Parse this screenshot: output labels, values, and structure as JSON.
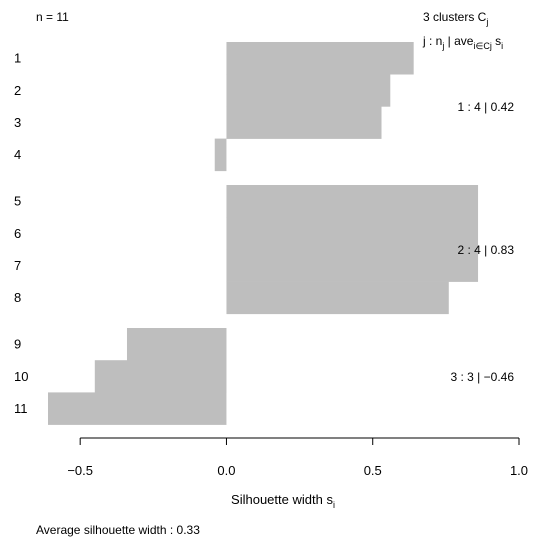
{
  "chart_data": {
    "type": "bar",
    "orientation": "horizontal",
    "n_label": "n = 11",
    "clusters_header": {
      "prefix": "3  clusters  C",
      "sub": "j"
    },
    "cluster_table_header": {
      "j_part": "j :  n",
      "n_sub": "j",
      "ave_part": " | ave",
      "ave_sub": "i∈Cj",
      "s_part": " s",
      "s_sub": "i"
    },
    "bar_color": "#bebebe",
    "categories": [
      "1",
      "2",
      "3",
      "4",
      "5",
      "6",
      "7",
      "8",
      "9",
      "10",
      "11"
    ],
    "values": [
      0.64,
      0.56,
      0.53,
      -0.04,
      0.86,
      0.86,
      0.86,
      0.76,
      -0.34,
      -0.45,
      -0.61
    ],
    "clusters": [
      {
        "id": 1,
        "size": 4,
        "members": [
          0,
          1,
          2,
          3
        ],
        "label": "1 :   4  |  0.42"
      },
      {
        "id": 2,
        "size": 4,
        "members": [
          4,
          5,
          6,
          7
        ],
        "label": "2 :   4  |  0.83"
      },
      {
        "id": 3,
        "size": 3,
        "members": [
          8,
          9,
          10
        ],
        "label": "3 :   3  |  −0.46"
      }
    ],
    "xlim": [
      -0.61,
      1.0
    ],
    "xticks": [
      -0.5,
      0.0,
      0.5,
      1.0
    ],
    "xtick_labels": [
      "−0.5",
      "0.0",
      "0.5",
      "1.0"
    ],
    "xlabel": {
      "main": "Silhouette width  s",
      "sub": "i"
    },
    "footer": "Average silhouette width :  0.33"
  }
}
